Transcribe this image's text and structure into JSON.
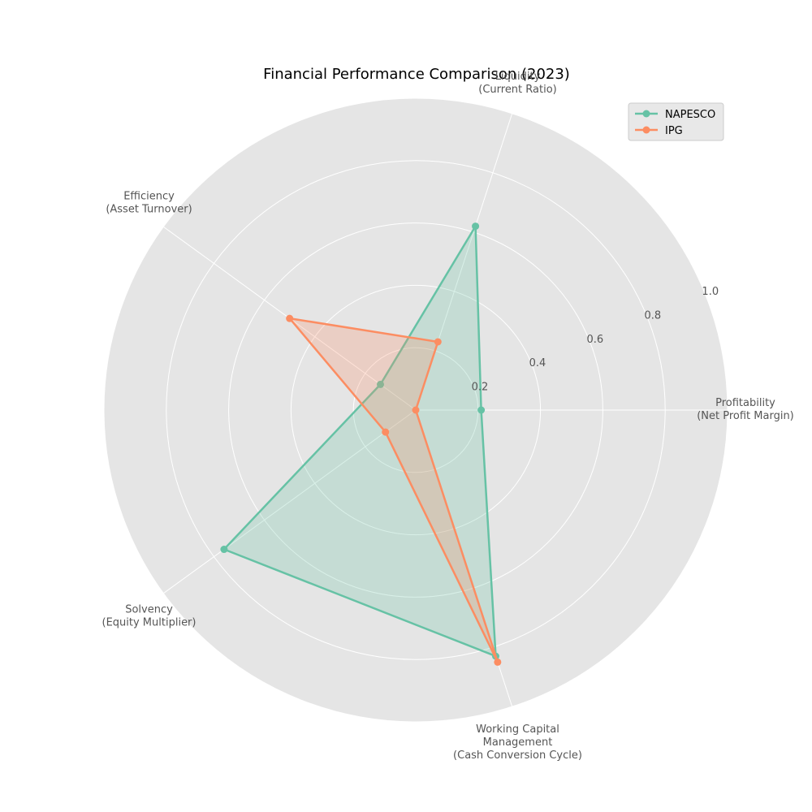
{
  "chart_data": {
    "type": "radar",
    "title": "Financial Performance Comparison (2023)",
    "axes": [
      [
        "Profitability",
        "(Net Profit Margin)"
      ],
      [
        "Liquidity",
        "(Current Ratio)"
      ],
      [
        "Efficiency",
        "(Asset Turnover)"
      ],
      [
        "Solvency",
        "(Equity Multiplier)"
      ],
      [
        "Working Capital",
        "Management",
        "(Cash Conversion Cycle)"
      ]
    ],
    "rticks": [
      "0.2",
      "0.4",
      "0.6",
      "0.8",
      "1.0"
    ],
    "rtick_values": [
      0.2,
      0.4,
      0.6,
      0.8,
      1.0
    ],
    "rlim": [
      0,
      1
    ],
    "legend_position": "top-right",
    "grid": true,
    "background_color": "#e5e5e5",
    "series": [
      {
        "name": "NAPESCO",
        "color": "#66c2a5",
        "values": [
          0.21,
          0.62,
          0.14,
          0.76,
          0.83
        ]
      },
      {
        "name": "IPG",
        "color": "#fc8d62",
        "values": [
          0.0,
          0.23,
          0.5,
          0.12,
          0.85
        ]
      }
    ]
  }
}
